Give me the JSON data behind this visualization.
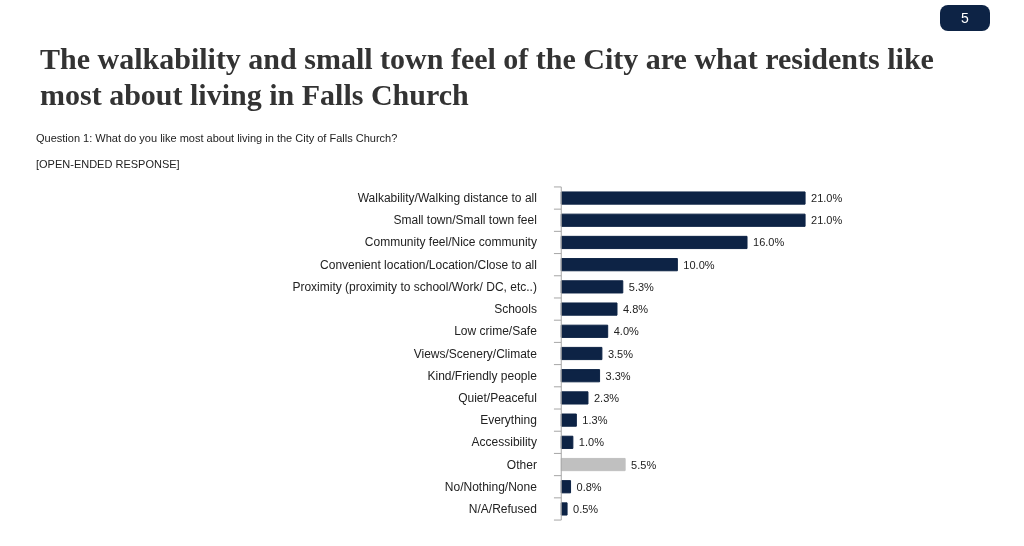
{
  "chart_data": {
    "type": "bar",
    "orientation": "horizontal",
    "title": "The walkability and small town feel of the City are what residents like most about living in Falls Church",
    "subtitle": "Question 1:     What do you like most about living in the City of Falls Church?",
    "annotations": [
      "[OPEN-ENDED RESPONSE]",
      "5"
    ],
    "categories": [
      "Walkability/Walking distance to all",
      "Small town/Small town feel",
      "Community feel/Nice community",
      "Convenient location/Location/Close to all",
      "Proximity (proximity to school/Work/ DC, etc..)",
      "Schools",
      "Low crime/Safe",
      "Views/Scenery/Climate",
      "Kind/Friendly people",
      "Quiet/Peaceful",
      "Everything",
      "Accessibility",
      "Other",
      "No/Nothing/None",
      "N/A/Refused"
    ],
    "values": [
      21.0,
      21.0,
      16.0,
      10.0,
      5.3,
      4.8,
      4.0,
      3.5,
      3.3,
      2.3,
      1.3,
      1.0,
      5.5,
      0.8,
      0.5
    ],
    "colors": [
      "#0d2345",
      "#0d2345",
      "#0d2345",
      "#0d2345",
      "#0d2345",
      "#0d2345",
      "#0d2345",
      "#0d2345",
      "#0d2345",
      "#0d2345",
      "#0d2345",
      "#0d2345",
      "#c0c0c0",
      "#0d2345",
      "#0d2345"
    ],
    "value_labels": [
      "21.0%",
      "21.0%",
      "16.0%",
      "10.0%",
      "5.3%",
      "4.8%",
      "4.0%",
      "3.5%",
      "3.3%",
      "2.3%",
      "1.3%",
      "1.0%",
      "5.5%",
      "0.8%",
      "0.5%"
    ],
    "grid": false
  }
}
